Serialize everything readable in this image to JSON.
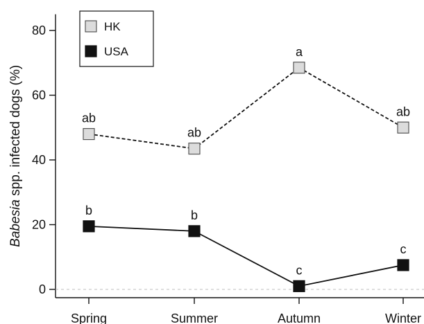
{
  "chart_data": {
    "type": "line",
    "categories": [
      "Spring",
      "Summer",
      "Autumn",
      "Winter"
    ],
    "ylabel_italic": "Babesia",
    "ylabel_rest": " spp. infected dogs (%)",
    "xlabel": "",
    "ylim": [
      -2,
      85
    ],
    "yticks": [
      0,
      20,
      40,
      60,
      80
    ],
    "zero_reference_line": true,
    "legend_position": "top-left",
    "series": [
      {
        "name": "HK",
        "values": [
          48,
          43.5,
          68.5,
          50
        ],
        "labels": [
          "ab",
          "ab",
          "a",
          "ab"
        ],
        "line_style": "dashed",
        "marker_fill": "#dcdcdc",
        "marker_stroke": "#555555",
        "line_color": "#111111"
      },
      {
        "name": "USA",
        "values": [
          19.5,
          18,
          1,
          7.5
        ],
        "labels": [
          "b",
          "b",
          "c",
          "c"
        ],
        "line_style": "solid",
        "marker_fill": "#111111",
        "marker_stroke": "#111111",
        "line_color": "#111111"
      }
    ]
  }
}
